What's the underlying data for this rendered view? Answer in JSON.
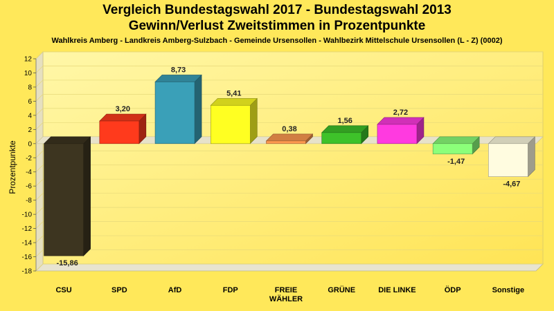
{
  "chart_data": {
    "type": "bar",
    "title": "Vergleich Bundestagswahl 2017 - Bundestagswahl 2013",
    "title2": "Gewinn/Verlust Zweitstimmen in Prozentpunkte",
    "subtitle": "Wahlkreis Amberg - Landkreis Amberg-Sulzbach - Gemeinde Ursensollen - Wahlbezirk Mittelschule Ursensollen (L - Z) (0002)",
    "ylabel": "Prozentpunkte",
    "xlabel": "",
    "ylim": [
      -18,
      12
    ],
    "yticks": [
      "12",
      "10",
      "8",
      "6",
      "4",
      "2",
      "0",
      "-2",
      "-4",
      "-6",
      "-8",
      "-10",
      "-12",
      "-14",
      "-16",
      "-18"
    ],
    "grid": true,
    "categories": [
      {
        "lines": [
          "CSU"
        ]
      },
      {
        "lines": [
          "SPD"
        ]
      },
      {
        "lines": [
          "AfD"
        ]
      },
      {
        "lines": [
          "FDP"
        ]
      },
      {
        "lines": [
          "FREIE",
          "WÄHLER"
        ]
      },
      {
        "lines": [
          "GRÜNE"
        ]
      },
      {
        "lines": [
          "DIE LINKE"
        ]
      },
      {
        "lines": [
          "ÖDP"
        ]
      },
      {
        "lines": [
          "Sonstige"
        ]
      }
    ],
    "values": [
      -15.86,
      3.2,
      8.73,
      5.41,
      0.38,
      1.56,
      2.72,
      -1.47,
      -4.67
    ],
    "value_labels": [
      "-15,86",
      "3,20",
      "8,73",
      "5,41",
      "0,38",
      "1,56",
      "2,72",
      "-1,47",
      "-4,67"
    ],
    "colors": [
      "#3D3520",
      "#FF3A1C",
      "#3AA0B8",
      "#FFFF22",
      "#FF9A50",
      "#3EC22A",
      "#FF3AE0",
      "#8CFF7A",
      "#FFFCE0"
    ]
  }
}
